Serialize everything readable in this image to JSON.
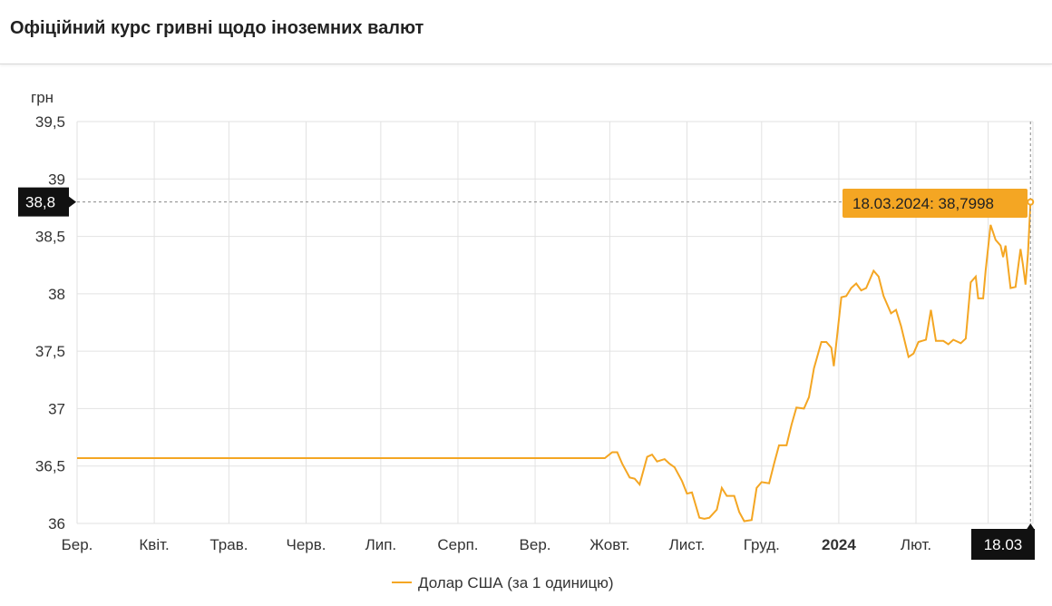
{
  "header": {
    "title": "Офіційний курс гривні щодо іноземних валют"
  },
  "chart_data": {
    "type": "line",
    "ylabel": "грн",
    "ylim": [
      36,
      39.5
    ],
    "yticks": [
      "39,5",
      "39",
      "38,5",
      "38",
      "37,5",
      "37",
      "36,5",
      "36"
    ],
    "ytick_values": [
      39.5,
      39,
      38.5,
      38,
      37.5,
      37,
      36.5,
      36
    ],
    "xlim": [
      "2023-03-01",
      "2024-03-19"
    ],
    "xticks": [
      {
        "label": "Бер.",
        "date": "2023-03-01"
      },
      {
        "label": "Квіт.",
        "date": "2023-04-01"
      },
      {
        "label": "Трав.",
        "date": "2023-05-01"
      },
      {
        "label": "Черв.",
        "date": "2023-06-01"
      },
      {
        "label": "Лип.",
        "date": "2023-07-01"
      },
      {
        "label": "Серп.",
        "date": "2023-08-01"
      },
      {
        "label": "Вер.",
        "date": "2023-09-01"
      },
      {
        "label": "Жовт.",
        "date": "2023-10-01"
      },
      {
        "label": "Лист.",
        "date": "2023-11-01"
      },
      {
        "label": "Груд.",
        "date": "2023-12-01"
      },
      {
        "label": "2024",
        "date": "2024-01-01",
        "bold": true
      },
      {
        "label": "Лют.",
        "date": "2024-02-01"
      },
      {
        "label": "Бер.",
        "date": "2024-03-01"
      }
    ],
    "grid": true,
    "legend_position": "bottom",
    "series": [
      {
        "name": "Долар США (за 1 одиницю)",
        "color": "#f4a623",
        "points": [
          [
            "2023-03-01",
            36.5686
          ],
          [
            "2023-09-29",
            36.5686
          ],
          [
            "2023-10-02",
            36.62
          ],
          [
            "2023-10-04",
            36.62
          ],
          [
            "2023-10-06",
            36.52
          ],
          [
            "2023-10-09",
            36.4
          ],
          [
            "2023-10-11",
            36.39
          ],
          [
            "2023-10-13",
            36.34
          ],
          [
            "2023-10-16",
            36.58
          ],
          [
            "2023-10-18",
            36.6
          ],
          [
            "2023-10-20",
            36.54
          ],
          [
            "2023-10-23",
            36.56
          ],
          [
            "2023-10-25",
            36.52
          ],
          [
            "2023-10-27",
            36.49
          ],
          [
            "2023-10-30",
            36.37
          ],
          [
            "2023-11-01",
            36.26
          ],
          [
            "2023-11-03",
            36.27
          ],
          [
            "2023-11-06",
            36.05
          ],
          [
            "2023-11-08",
            36.04
          ],
          [
            "2023-11-10",
            36.05
          ],
          [
            "2023-11-13",
            36.12
          ],
          [
            "2023-11-15",
            36.31
          ],
          [
            "2023-11-17",
            36.24
          ],
          [
            "2023-11-20",
            36.24
          ],
          [
            "2023-11-22",
            36.1
          ],
          [
            "2023-11-24",
            36.02
          ],
          [
            "2023-11-27",
            36.03
          ],
          [
            "2023-11-29",
            36.31
          ],
          [
            "2023-12-01",
            36.36
          ],
          [
            "2023-12-04",
            36.35
          ],
          [
            "2023-12-06",
            36.52
          ],
          [
            "2023-12-08",
            36.68
          ],
          [
            "2023-12-11",
            36.68
          ],
          [
            "2023-12-13",
            36.86
          ],
          [
            "2023-12-15",
            37.01
          ],
          [
            "2023-12-18",
            37.0
          ],
          [
            "2023-12-20",
            37.1
          ],
          [
            "2023-12-22",
            37.35
          ],
          [
            "2023-12-25",
            37.58
          ],
          [
            "2023-12-27",
            37.58
          ],
          [
            "2023-12-29",
            37.53
          ],
          [
            "2023-12-30",
            37.37
          ],
          [
            "2024-01-02",
            37.97
          ],
          [
            "2024-01-04",
            37.98
          ],
          [
            "2024-01-06",
            38.05
          ],
          [
            "2024-01-08",
            38.09
          ],
          [
            "2024-01-10",
            38.03
          ],
          [
            "2024-01-12",
            38.05
          ],
          [
            "2024-01-15",
            38.2
          ],
          [
            "2024-01-17",
            38.15
          ],
          [
            "2024-01-19",
            37.98
          ],
          [
            "2024-01-22",
            37.83
          ],
          [
            "2024-01-24",
            37.86
          ],
          [
            "2024-01-26",
            37.72
          ],
          [
            "2024-01-29",
            37.45
          ],
          [
            "2024-01-31",
            37.48
          ],
          [
            "2024-02-02",
            37.58
          ],
          [
            "2024-02-05",
            37.6
          ],
          [
            "2024-02-07",
            37.86
          ],
          [
            "2024-02-09",
            37.59
          ],
          [
            "2024-02-12",
            37.59
          ],
          [
            "2024-02-14",
            37.56
          ],
          [
            "2024-02-16",
            37.6
          ],
          [
            "2024-02-19",
            37.57
          ],
          [
            "2024-02-21",
            37.61
          ],
          [
            "2024-02-23",
            38.1
          ],
          [
            "2024-02-25",
            38.15
          ],
          [
            "2024-02-26",
            37.96
          ],
          [
            "2024-02-28",
            37.96
          ],
          [
            "2024-02-29",
            38.2
          ],
          [
            "2024-03-02",
            38.6
          ],
          [
            "2024-03-04",
            38.47
          ],
          [
            "2024-03-06",
            38.42
          ],
          [
            "2024-03-07",
            38.32
          ],
          [
            "2024-03-08",
            38.42
          ],
          [
            "2024-03-10",
            38.05
          ],
          [
            "2024-03-12",
            38.06
          ],
          [
            "2024-03-14",
            38.39
          ],
          [
            "2024-03-15",
            38.25
          ],
          [
            "2024-03-16",
            38.08
          ],
          [
            "2024-03-17",
            38.35
          ],
          [
            "2024-03-18",
            38.7998
          ]
        ]
      }
    ],
    "crosshair": {
      "y_value": 38.8,
      "y_label": "38,8",
      "x_date": "2024-03-18",
      "x_label": "18.03"
    },
    "tooltip": "18.03.2024: 38,7998"
  }
}
